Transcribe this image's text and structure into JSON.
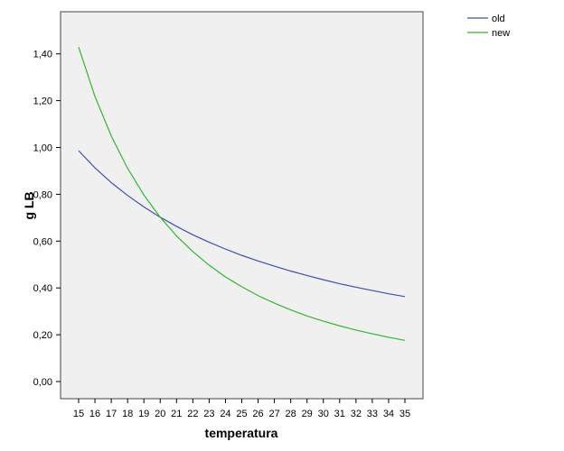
{
  "chart_data": {
    "type": "line",
    "xlabel": "temperatura",
    "ylabel": "g LB",
    "x": [
      15,
      16,
      17,
      18,
      19,
      20,
      21,
      22,
      23,
      24,
      25,
      26,
      27,
      28,
      29,
      30,
      31,
      32,
      33,
      34,
      35
    ],
    "xlim": [
      14,
      36
    ],
    "ylim": [
      -0.07,
      1.58
    ],
    "yticks": [
      "0,00",
      "0,20",
      "0,40",
      "0,60",
      "0,80",
      "1,00",
      "1,20",
      "1,40"
    ],
    "ytick_values": [
      0,
      0.2,
      0.4,
      0.6,
      0.8,
      1.0,
      1.2,
      1.4
    ],
    "grid": false,
    "legend_position": "top-right-outside",
    "background": "#f0f0f0",
    "series": [
      {
        "name": "old",
        "color": "#3e4fb0",
        "values": [
          0.986,
          0.913,
          0.85,
          0.795,
          0.746,
          0.702,
          0.663,
          0.627,
          0.595,
          0.566,
          0.539,
          0.515,
          0.493,
          0.472,
          0.453,
          0.435,
          0.418,
          0.403,
          0.389,
          0.375,
          0.363
        ]
      },
      {
        "name": "new",
        "color": "#2fb82f",
        "values": [
          1.429,
          1.218,
          1.049,
          0.911,
          0.797,
          0.702,
          0.622,
          0.555,
          0.497,
          0.447,
          0.405,
          0.367,
          0.335,
          0.306,
          0.28,
          0.258,
          0.238,
          0.22,
          0.204,
          0.189,
          0.176
        ]
      }
    ]
  }
}
